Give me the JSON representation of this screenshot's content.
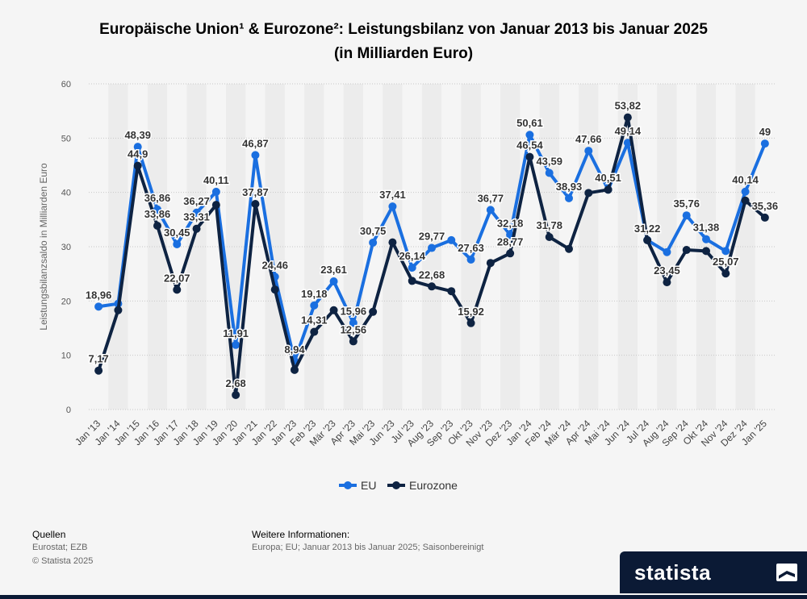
{
  "header": {
    "title_line1": "Europäische Union¹ & Eurozone²: Leistungsbilanz von Januar 2013 bis Januar 2025",
    "title_line2": "(in Milliarden Euro)"
  },
  "chart_data": {
    "type": "line",
    "title": "Europäische Union¹ & Eurozone²: Leistungsbilanz von Januar 2013 bis Januar 2025 (in Milliarden Euro)",
    "xlabel": "",
    "ylabel": "Leistungsbilanzsaldo in Milliarden Euro",
    "ylim": [
      0,
      60
    ],
    "yticks": [
      0,
      10,
      20,
      30,
      40,
      50,
      60
    ],
    "grid": true,
    "legend_position": "bottom-center",
    "categories": [
      "Jan '13",
      "Jan '14",
      "Jan '15",
      "Jan '16",
      "Jan '17",
      "Jan '18",
      "Jan '19",
      "Jan '20",
      "Jan '21",
      "Jan '22",
      "Jan '23",
      "Feb '23",
      "Mär '23",
      "Apr '23",
      "Mai '23",
      "Jun '23",
      "Jul '23",
      "Aug '23",
      "Sep '23",
      "Okt '23",
      "Nov '23",
      "Dez '23",
      "Jan '24",
      "Feb '24",
      "Mär '24",
      "Apr '24",
      "Mai '24",
      "Jun '24",
      "Jul '24",
      "Aug '24",
      "Sep '24",
      "Okt '24",
      "Nov '24",
      "Dez '24",
      "Jan '25"
    ],
    "series": [
      {
        "name": "EU",
        "color": "#1a6fe0",
        "values": [
          18.96,
          19.5,
          48.39,
          36.86,
          30.45,
          36.27,
          40.11,
          11.91,
          46.87,
          24.46,
          8.94,
          19.18,
          23.61,
          15.96,
          30.75,
          37.41,
          26.14,
          29.77,
          31.2,
          27.63,
          36.77,
          32.18,
          50.61,
          43.59,
          38.93,
          47.66,
          40.51,
          49.14,
          31.22,
          29.0,
          35.76,
          31.38,
          29.2,
          40.14,
          49
        ],
        "labels": [
          "18,96",
          null,
          "48,39",
          "36,86",
          "30,45",
          "36,27",
          "40,11",
          "11,91",
          "46,87",
          "24,46",
          "8,94",
          "19,18",
          "23,61",
          "15,96",
          "30,75",
          "37,41",
          "26,14",
          "29,77",
          null,
          "27,63",
          "36,77",
          "32,18",
          "50,61",
          "43,59",
          "38,93",
          "47,66",
          "40,51",
          "49,14",
          "31,22",
          null,
          "35,76",
          "31,38",
          null,
          "40,14",
          "49"
        ]
      },
      {
        "name": "Eurozone",
        "color": "#0e2342",
        "values": [
          7.17,
          18.3,
          44.9,
          33.86,
          22.07,
          33.31,
          37.7,
          2.68,
          37.87,
          22.1,
          7.3,
          14.31,
          18.3,
          12.56,
          18.0,
          30.8,
          23.7,
          22.68,
          21.8,
          15.92,
          27.0,
          28.77,
          46.54,
          31.78,
          29.6,
          39.9,
          40.5,
          53.82,
          31.2,
          23.45,
          29.4,
          29.2,
          25.07,
          38.5,
          35.36
        ],
        "labels": [
          "7,17",
          null,
          "44,9",
          "33,86",
          "22,07",
          "33,31",
          null,
          "2,68",
          "37,87",
          null,
          null,
          "14,31",
          null,
          "12,56",
          null,
          null,
          null,
          "22,68",
          null,
          "15,92",
          null,
          "28,77",
          "46,54",
          "31,78",
          null,
          null,
          null,
          "53,82",
          null,
          "23,45",
          null,
          null,
          "25,07",
          null,
          "35,36"
        ]
      }
    ]
  },
  "legend": {
    "eu": "EU",
    "eurozone": "Eurozone"
  },
  "footer": {
    "sources_heading": "Quellen",
    "sources": "Eurostat; EZB",
    "copyright": "© Statista 2025",
    "info_heading": "Weitere Informationen:",
    "info_text": "Europa; EU; Januar 2013 bis Januar 2025; Saisonbereinigt"
  },
  "brand": {
    "name": "statista"
  }
}
